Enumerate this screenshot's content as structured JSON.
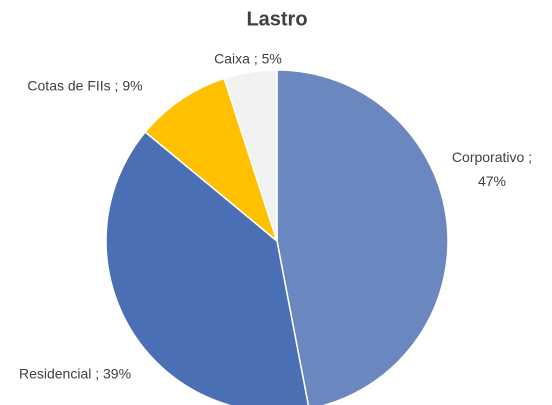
{
  "chart_data": {
    "type": "pie",
    "title": "Lastro",
    "categories": [
      "Corporativo",
      "Residencial",
      "Cotas de FIIs",
      "Caixa"
    ],
    "values": [
      47,
      39,
      9,
      5
    ],
    "value_labels": [
      "Corporativo ; 47%",
      "Residencial ; 39%",
      "Cotas de FIIs ; 9%",
      "Caixa ; 5%"
    ],
    "colors": [
      "#6b87bf",
      "#4a6fb5",
      "#ffc000",
      "#f2f2f2"
    ]
  }
}
